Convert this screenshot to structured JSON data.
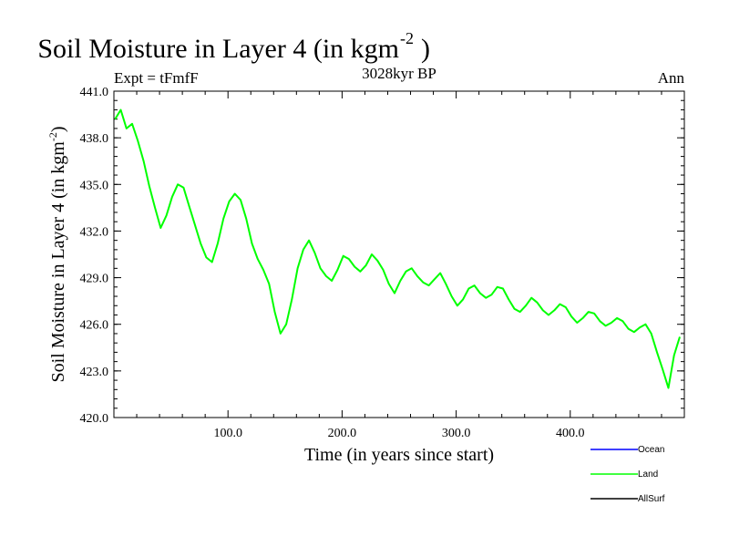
{
  "chart_data": {
    "type": "line",
    "title": "Soil Moisture in Layer 4 (in kgm",
    "title_superscript": "-2",
    "title_close": ")",
    "subtitle_left": "Expt = tFmfF",
    "subtitle_center": "3028kyr BP",
    "subtitle_right": "Ann",
    "xlabel": "Time (in years since start)",
    "ylabel": "Soil Moisture in Layer 4 (in kgm",
    "ylabel_superscript": "-2",
    "ylabel_close": ")",
    "xlim": [
      0,
      500
    ],
    "ylim": [
      420,
      441
    ],
    "x_ticks": [
      100,
      200,
      300,
      400
    ],
    "x_tick_labels": [
      "100.0",
      "200.0",
      "300.0",
      "400.0"
    ],
    "y_ticks": [
      420,
      423,
      426,
      429,
      432,
      435,
      438,
      441
    ],
    "y_tick_labels": [
      "420.0",
      "423.0",
      "426.0",
      "429.0",
      "432.0",
      "435.0",
      "438.0",
      "441.0"
    ],
    "legend": [
      {
        "name": "Ocean",
        "color": "#0000ff"
      },
      {
        "name": "Land",
        "color": "#00ff00"
      },
      {
        "name": "AllSurf",
        "color": "#000000"
      }
    ],
    "series": [
      {
        "name": "Land",
        "color": "#00ff00",
        "x_start": 1,
        "x_step": 5,
        "values": [
          439.2,
          439.8,
          438.6,
          438.9,
          437.8,
          436.5,
          434.9,
          433.5,
          432.2,
          433.0,
          434.2,
          435.0,
          434.8,
          433.6,
          432.4,
          431.2,
          430.3,
          430.0,
          431.2,
          432.8,
          433.9,
          434.4,
          434.0,
          432.8,
          431.2,
          430.2,
          429.5,
          428.6,
          426.8,
          425.4,
          426.0,
          427.6,
          429.6,
          430.8,
          431.4,
          430.6,
          429.6,
          429.1,
          428.8,
          429.5,
          430.4,
          430.2,
          429.7,
          429.4,
          429.8,
          430.5,
          430.1,
          429.5,
          428.6,
          428.0,
          428.8,
          429.4,
          429.6,
          429.1,
          428.7,
          428.5,
          428.9,
          429.3,
          428.6,
          427.8,
          427.2,
          427.6,
          428.3,
          428.5,
          428.0,
          427.7,
          427.9,
          428.4,
          428.3,
          427.6,
          427.0,
          426.8,
          427.2,
          427.7,
          427.4,
          426.9,
          426.6,
          426.9,
          427.3,
          427.1,
          426.5,
          426.1,
          426.4,
          426.8,
          426.7,
          426.2,
          425.9,
          426.1,
          426.4,
          426.2,
          425.7,
          425.5,
          425.8,
          426.0,
          425.4,
          424.2,
          423.1,
          421.9,
          424.0,
          425.2
        ]
      }
    ]
  }
}
